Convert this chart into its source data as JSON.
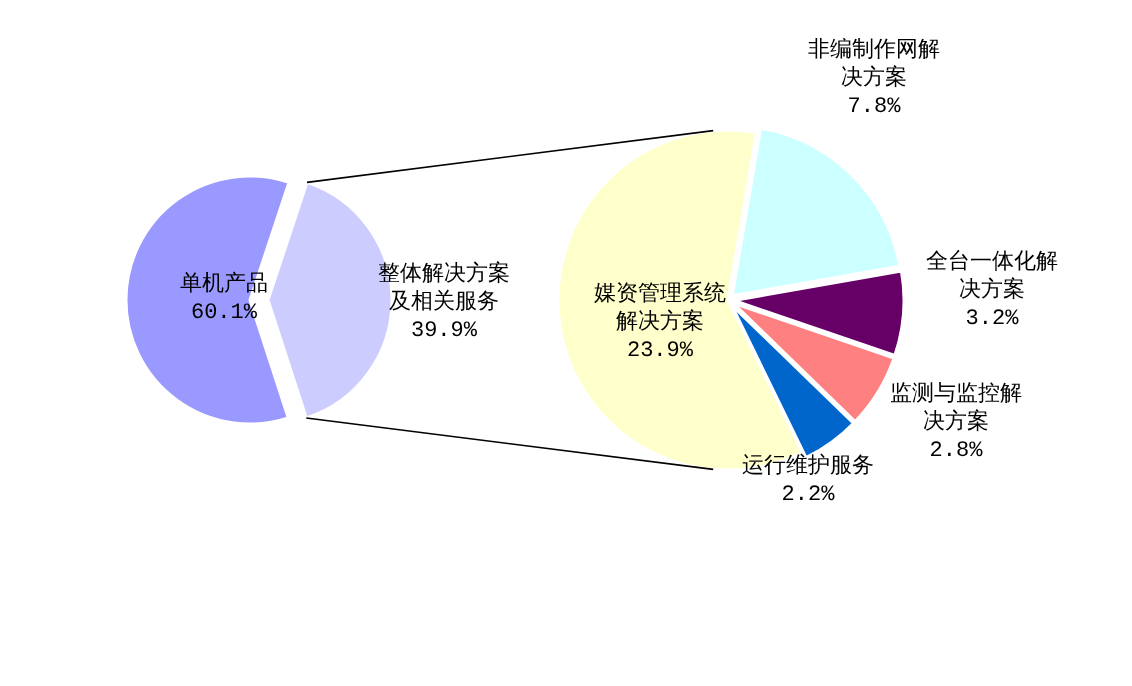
{
  "chart_data": [
    {
      "type": "pie",
      "categories": [
        "单机产品",
        "整体解决方案及相关服务"
      ],
      "values": [
        60.1,
        39.9
      ],
      "value_labels": [
        "60.1%",
        "39.9%"
      ],
      "colors": [
        "#9999ff",
        "#ccccff"
      ]
    },
    {
      "type": "pie",
      "categories": [
        "媒资管理系统解决方案",
        "非编制作网解决方案",
        "全台一体化解决方案",
        "监测与监控解决方案",
        "运行维护服务"
      ],
      "values": [
        23.9,
        7.8,
        3.2,
        2.8,
        2.2
      ],
      "value_labels": [
        "23.9%",
        "7.8%",
        "3.2%",
        "2.8%",
        "2.2%"
      ],
      "colors": [
        "#ffffcc",
        "#ccffff",
        "#660066",
        "#ff8080",
        "#0066cc"
      ]
    }
  ]
}
